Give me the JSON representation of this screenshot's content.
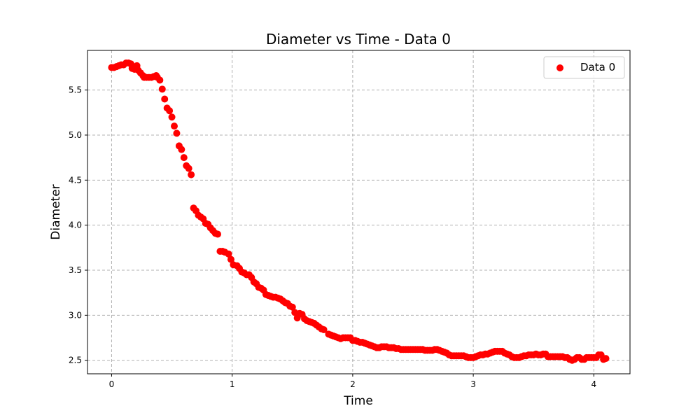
{
  "chart_data": {
    "type": "scatter",
    "title": "Diameter vs Time - Data 0",
    "xlabel": "Time",
    "ylabel": "Diameter",
    "xlim": [
      -0.2,
      4.3
    ],
    "ylim": [
      2.35,
      5.94
    ],
    "xticks": [
      0,
      1,
      2,
      3,
      4
    ],
    "yticks": [
      2.5,
      3.0,
      3.5,
      4.0,
      4.5,
      5.0,
      5.5
    ],
    "xtick_labels": [
      "0",
      "1",
      "2",
      "3",
      "4"
    ],
    "ytick_labels": [
      "2.5",
      "3.0",
      "3.5",
      "4.0",
      "4.5",
      "5.0",
      "5.5"
    ],
    "grid": true,
    "legend_position": "top-right",
    "color": "#ff0000",
    "series": [
      {
        "name": "Data 0",
        "points": [
          [
            0.0,
            5.75
          ],
          [
            0.02,
            5.75
          ],
          [
            0.04,
            5.76
          ],
          [
            0.06,
            5.77
          ],
          [
            0.08,
            5.78
          ],
          [
            0.1,
            5.78
          ],
          [
            0.12,
            5.8
          ],
          [
            0.14,
            5.8
          ],
          [
            0.16,
            5.79
          ],
          [
            0.17,
            5.74
          ],
          [
            0.19,
            5.73
          ],
          [
            0.21,
            5.77
          ],
          [
            0.22,
            5.72
          ],
          [
            0.24,
            5.69
          ],
          [
            0.26,
            5.66
          ],
          [
            0.27,
            5.64
          ],
          [
            0.29,
            5.64
          ],
          [
            0.31,
            5.64
          ],
          [
            0.33,
            5.64
          ],
          [
            0.35,
            5.65
          ],
          [
            0.37,
            5.66
          ],
          [
            0.38,
            5.64
          ],
          [
            0.4,
            5.61
          ],
          [
            0.42,
            5.51
          ],
          [
            0.44,
            5.4
          ],
          [
            0.46,
            5.3
          ],
          [
            0.48,
            5.27
          ],
          [
            0.5,
            5.2
          ],
          [
            0.52,
            5.1
          ],
          [
            0.54,
            5.02
          ],
          [
            0.56,
            4.88
          ],
          [
            0.58,
            4.84
          ],
          [
            0.6,
            4.75
          ],
          [
            0.62,
            4.66
          ],
          [
            0.64,
            4.63
          ],
          [
            0.66,
            4.56
          ],
          [
            0.68,
            4.19
          ],
          [
            0.7,
            4.16
          ],
          [
            0.72,
            4.11
          ],
          [
            0.74,
            4.09
          ],
          [
            0.76,
            4.07
          ],
          [
            0.78,
            4.02
          ],
          [
            0.8,
            4.01
          ],
          [
            0.82,
            3.97
          ],
          [
            0.84,
            3.94
          ],
          [
            0.86,
            3.91
          ],
          [
            0.88,
            3.9
          ],
          [
            0.9,
            3.71
          ],
          [
            0.92,
            3.71
          ],
          [
            0.94,
            3.7
          ],
          [
            0.97,
            3.68
          ],
          [
            0.99,
            3.62
          ],
          [
            1.01,
            3.56
          ],
          [
            1.04,
            3.55
          ],
          [
            1.06,
            3.52
          ],
          [
            1.08,
            3.48
          ],
          [
            1.1,
            3.47
          ],
          [
            1.12,
            3.45
          ],
          [
            1.14,
            3.45
          ],
          [
            1.16,
            3.42
          ],
          [
            1.18,
            3.37
          ],
          [
            1.2,
            3.35
          ],
          [
            1.22,
            3.31
          ],
          [
            1.24,
            3.3
          ],
          [
            1.26,
            3.28
          ],
          [
            1.28,
            3.23
          ],
          [
            1.3,
            3.22
          ],
          [
            1.32,
            3.21
          ],
          [
            1.34,
            3.2
          ],
          [
            1.36,
            3.2
          ],
          [
            1.38,
            3.19
          ],
          [
            1.4,
            3.18
          ],
          [
            1.42,
            3.16
          ],
          [
            1.44,
            3.14
          ],
          [
            1.46,
            3.13
          ],
          [
            1.48,
            3.1
          ],
          [
            1.5,
            3.09
          ],
          [
            1.52,
            3.03
          ],
          [
            1.54,
            2.97
          ],
          [
            1.56,
            3.02
          ],
          [
            1.58,
            3.01
          ],
          [
            1.6,
            2.96
          ],
          [
            1.62,
            2.94
          ],
          [
            1.64,
            2.93
          ],
          [
            1.66,
            2.92
          ],
          [
            1.68,
            2.91
          ],
          [
            1.7,
            2.89
          ],
          [
            1.72,
            2.87
          ],
          [
            1.74,
            2.85
          ],
          [
            1.76,
            2.84
          ],
          [
            1.8,
            2.79
          ],
          [
            1.82,
            2.78
          ],
          [
            1.84,
            2.77
          ],
          [
            1.86,
            2.76
          ],
          [
            1.88,
            2.75
          ],
          [
            1.9,
            2.74
          ],
          [
            1.92,
            2.75
          ],
          [
            1.94,
            2.75
          ],
          [
            1.96,
            2.75
          ],
          [
            1.98,
            2.75
          ],
          [
            2.0,
            2.72
          ],
          [
            2.02,
            2.72
          ],
          [
            2.04,
            2.71
          ],
          [
            2.06,
            2.7
          ],
          [
            2.08,
            2.7
          ],
          [
            2.1,
            2.69
          ],
          [
            2.12,
            2.68
          ],
          [
            2.14,
            2.67
          ],
          [
            2.16,
            2.66
          ],
          [
            2.18,
            2.65
          ],
          [
            2.2,
            2.64
          ],
          [
            2.22,
            2.64
          ],
          [
            2.24,
            2.65
          ],
          [
            2.26,
            2.65
          ],
          [
            2.28,
            2.65
          ],
          [
            2.3,
            2.64
          ],
          [
            2.32,
            2.64
          ],
          [
            2.34,
            2.64
          ],
          [
            2.36,
            2.63
          ],
          [
            2.38,
            2.63
          ],
          [
            2.4,
            2.62
          ],
          [
            2.42,
            2.62
          ],
          [
            2.44,
            2.62
          ],
          [
            2.46,
            2.62
          ],
          [
            2.48,
            2.62
          ],
          [
            2.5,
            2.62
          ],
          [
            2.52,
            2.62
          ],
          [
            2.54,
            2.62
          ],
          [
            2.56,
            2.62
          ],
          [
            2.58,
            2.62
          ],
          [
            2.6,
            2.61
          ],
          [
            2.62,
            2.61
          ],
          [
            2.64,
            2.61
          ],
          [
            2.66,
            2.61
          ],
          [
            2.68,
            2.62
          ],
          [
            2.7,
            2.62
          ],
          [
            2.72,
            2.61
          ],
          [
            2.74,
            2.6
          ],
          [
            2.76,
            2.59
          ],
          [
            2.78,
            2.58
          ],
          [
            2.8,
            2.56
          ],
          [
            2.82,
            2.55
          ],
          [
            2.84,
            2.55
          ],
          [
            2.86,
            2.55
          ],
          [
            2.88,
            2.55
          ],
          [
            2.9,
            2.55
          ],
          [
            2.92,
            2.55
          ],
          [
            2.94,
            2.54
          ],
          [
            2.96,
            2.53
          ],
          [
            2.98,
            2.53
          ],
          [
            3.0,
            2.53
          ],
          [
            3.02,
            2.54
          ],
          [
            3.04,
            2.55
          ],
          [
            3.06,
            2.56
          ],
          [
            3.08,
            2.56
          ],
          [
            3.1,
            2.57
          ],
          [
            3.12,
            2.57
          ],
          [
            3.14,
            2.58
          ],
          [
            3.16,
            2.59
          ],
          [
            3.18,
            2.6
          ],
          [
            3.2,
            2.6
          ],
          [
            3.22,
            2.6
          ],
          [
            3.24,
            2.6
          ],
          [
            3.26,
            2.58
          ],
          [
            3.28,
            2.57
          ],
          [
            3.3,
            2.56
          ],
          [
            3.32,
            2.54
          ],
          [
            3.34,
            2.53
          ],
          [
            3.36,
            2.53
          ],
          [
            3.38,
            2.53
          ],
          [
            3.4,
            2.54
          ],
          [
            3.42,
            2.55
          ],
          [
            3.44,
            2.55
          ],
          [
            3.46,
            2.56
          ],
          [
            3.48,
            2.56
          ],
          [
            3.5,
            2.56
          ],
          [
            3.52,
            2.57
          ],
          [
            3.54,
            2.56
          ],
          [
            3.56,
            2.56
          ],
          [
            3.58,
            2.57
          ],
          [
            3.6,
            2.57
          ],
          [
            3.62,
            2.54
          ],
          [
            3.64,
            2.54
          ],
          [
            3.66,
            2.54
          ],
          [
            3.68,
            2.54
          ],
          [
            3.7,
            2.54
          ],
          [
            3.72,
            2.54
          ],
          [
            3.74,
            2.54
          ],
          [
            3.76,
            2.53
          ],
          [
            3.78,
            2.53
          ],
          [
            3.8,
            2.51
          ],
          [
            3.82,
            2.5
          ],
          [
            3.84,
            2.51
          ],
          [
            3.86,
            2.53
          ],
          [
            3.88,
            2.53
          ],
          [
            3.9,
            2.51
          ],
          [
            3.92,
            2.51
          ],
          [
            3.94,
            2.53
          ],
          [
            3.96,
            2.53
          ],
          [
            3.98,
            2.53
          ],
          [
            4.0,
            2.53
          ],
          [
            4.02,
            2.53
          ],
          [
            4.04,
            2.56
          ],
          [
            4.06,
            2.56
          ],
          [
            4.08,
            2.51
          ],
          [
            4.1,
            2.52
          ]
        ]
      }
    ]
  }
}
